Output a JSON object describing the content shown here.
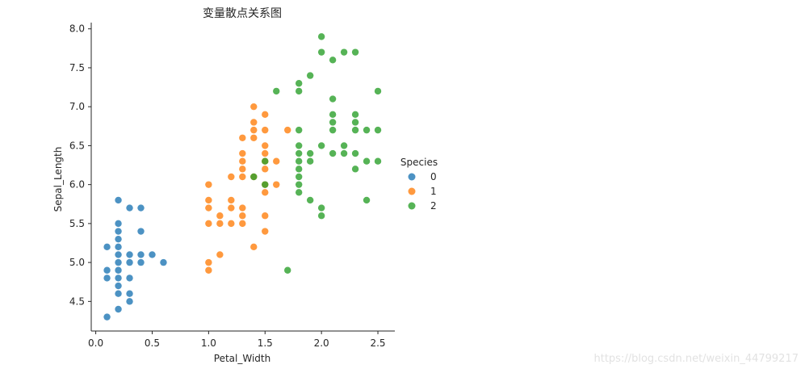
{
  "watermark": "https://blog.csdn.net/weixin_44799217",
  "chart_data": {
    "type": "scatter",
    "title": "变量散点关系图",
    "xlabel": "Petal_Width",
    "ylabel": "Sepal_Length",
    "xlim": [
      -0.04,
      2.65
    ],
    "ylim": [
      4.12,
      8.08
    ],
    "xticks": [
      "0.0",
      "0.5",
      "1.0",
      "1.5",
      "2.0",
      "2.5"
    ],
    "yticks": [
      "4.5",
      "5.0",
      "5.5",
      "6.0",
      "6.5",
      "7.0",
      "7.5",
      "8.0"
    ],
    "grid": false,
    "legend": {
      "title": "Species",
      "placement": "right"
    },
    "series": [
      {
        "name": "0",
        "color": "#1f77b4",
        "points": [
          [
            0.1,
            4.3
          ],
          [
            0.1,
            4.8
          ],
          [
            0.1,
            4.9
          ],
          [
            0.1,
            5.2
          ],
          [
            0.2,
            4.4
          ],
          [
            0.2,
            4.6
          ],
          [
            0.2,
            4.7
          ],
          [
            0.2,
            4.8
          ],
          [
            0.2,
            4.9
          ],
          [
            0.2,
            5.0
          ],
          [
            0.2,
            5.1
          ],
          [
            0.2,
            5.2
          ],
          [
            0.2,
            5.3
          ],
          [
            0.2,
            5.4
          ],
          [
            0.2,
            5.5
          ],
          [
            0.2,
            5.8
          ],
          [
            0.3,
            4.5
          ],
          [
            0.3,
            4.6
          ],
          [
            0.3,
            4.8
          ],
          [
            0.3,
            5.0
          ],
          [
            0.3,
            5.1
          ],
          [
            0.3,
            5.7
          ],
          [
            0.4,
            5.0
          ],
          [
            0.4,
            5.1
          ],
          [
            0.4,
            5.4
          ],
          [
            0.4,
            5.7
          ],
          [
            0.5,
            5.1
          ],
          [
            0.6,
            5.0
          ]
        ]
      },
      {
        "name": "1",
        "color": "#ff7f0e",
        "points": [
          [
            1.0,
            4.9
          ],
          [
            1.0,
            5.0
          ],
          [
            1.0,
            5.5
          ],
          [
            1.0,
            5.7
          ],
          [
            1.0,
            5.8
          ],
          [
            1.0,
            6.0
          ],
          [
            1.1,
            5.1
          ],
          [
            1.1,
            5.5
          ],
          [
            1.1,
            5.6
          ],
          [
            1.2,
            5.5
          ],
          [
            1.2,
            5.7
          ],
          [
            1.2,
            5.8
          ],
          [
            1.2,
            6.1
          ],
          [
            1.3,
            5.5
          ],
          [
            1.3,
            5.6
          ],
          [
            1.3,
            5.7
          ],
          [
            1.3,
            6.1
          ],
          [
            1.3,
            6.2
          ],
          [
            1.3,
            6.3
          ],
          [
            1.3,
            6.4
          ],
          [
            1.3,
            6.6
          ],
          [
            1.4,
            5.2
          ],
          [
            1.4,
            6.1
          ],
          [
            1.4,
            6.6
          ],
          [
            1.4,
            6.7
          ],
          [
            1.4,
            6.8
          ],
          [
            1.4,
            7.0
          ],
          [
            1.5,
            5.4
          ],
          [
            1.5,
            5.6
          ],
          [
            1.5,
            5.9
          ],
          [
            1.5,
            6.0
          ],
          [
            1.5,
            6.2
          ],
          [
            1.5,
            6.3
          ],
          [
            1.5,
            6.4
          ],
          [
            1.5,
            6.5
          ],
          [
            1.5,
            6.7
          ],
          [
            1.5,
            6.9
          ],
          [
            1.6,
            6.0
          ],
          [
            1.6,
            6.3
          ],
          [
            1.7,
            6.7
          ]
        ]
      },
      {
        "name": "2",
        "color": "#2ca02c",
        "points": [
          [
            1.4,
            6.1
          ],
          [
            1.5,
            6.0
          ],
          [
            1.5,
            6.3
          ],
          [
            1.6,
            7.2
          ],
          [
            1.7,
            4.9
          ],
          [
            1.8,
            5.9
          ],
          [
            1.8,
            6.0
          ],
          [
            1.8,
            6.1
          ],
          [
            1.8,
            6.2
          ],
          [
            1.8,
            6.3
          ],
          [
            1.8,
            6.4
          ],
          [
            1.8,
            6.5
          ],
          [
            1.8,
            6.7
          ],
          [
            1.8,
            7.2
          ],
          [
            1.8,
            7.3
          ],
          [
            1.9,
            5.8
          ],
          [
            1.9,
            6.3
          ],
          [
            1.9,
            6.4
          ],
          [
            1.9,
            7.4
          ],
          [
            2.0,
            5.6
          ],
          [
            2.0,
            5.7
          ],
          [
            2.0,
            6.5
          ],
          [
            2.0,
            7.7
          ],
          [
            2.0,
            7.9
          ],
          [
            2.1,
            6.4
          ],
          [
            2.1,
            6.7
          ],
          [
            2.1,
            6.8
          ],
          [
            2.1,
            6.9
          ],
          [
            2.1,
            7.1
          ],
          [
            2.1,
            7.6
          ],
          [
            2.2,
            6.4
          ],
          [
            2.2,
            6.5
          ],
          [
            2.2,
            7.7
          ],
          [
            2.3,
            6.2
          ],
          [
            2.3,
            6.4
          ],
          [
            2.3,
            6.7
          ],
          [
            2.3,
            6.8
          ],
          [
            2.3,
            6.9
          ],
          [
            2.3,
            7.7
          ],
          [
            2.4,
            5.8
          ],
          [
            2.4,
            6.3
          ],
          [
            2.4,
            6.7
          ],
          [
            2.5,
            6.3
          ],
          [
            2.5,
            6.7
          ],
          [
            2.5,
            7.2
          ]
        ]
      }
    ]
  }
}
